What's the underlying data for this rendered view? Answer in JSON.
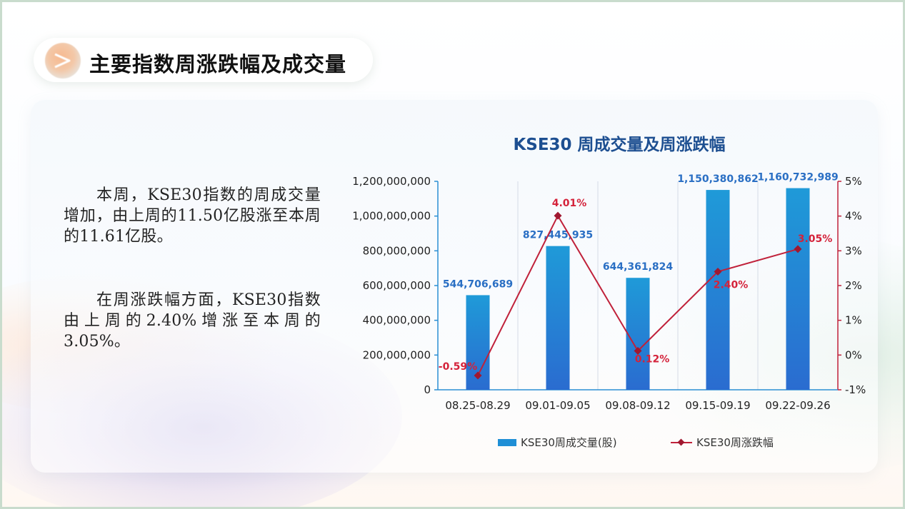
{
  "header": {
    "title": "主要指数周涨跌幅及成交量"
  },
  "text": {
    "paragraph1": "本周，KSE30指数的周成交量增加，由上周的11.50亿股涨至本周的11.61亿股。",
    "paragraph2": "在周涨跌幅方面，KSE30指数由上周的2.40%增涨至本周的3.05%。"
  },
  "colors": {
    "bar": "#1f8fd6",
    "line": "#c0213a",
    "bar_label": "#2a6fc4",
    "line_label": "#d4223a"
  },
  "chart_data": {
    "type": "bar+line",
    "title": "KSE30 周成交量及周涨跌幅",
    "categories": [
      "08.25-08.29",
      "09.01-09.05",
      "09.08-09.12",
      "09.15-09.19",
      "09.22-09.26"
    ],
    "series": [
      {
        "name": "KSE30周成交量(股)",
        "type": "bar",
        "axis": "left",
        "values": [
          544706689,
          827445935,
          644361824,
          1150380862,
          1160732989
        ],
        "labels": [
          "544,706,689",
          "827,445,935",
          "644,361,824",
          "1,150,380,862",
          "1,160,732,989"
        ]
      },
      {
        "name": "KSE30周涨跌幅",
        "type": "line",
        "axis": "right",
        "values": [
          -0.59,
          4.01,
          0.12,
          2.4,
          3.05
        ],
        "labels": [
          "-0.59%",
          "4.01%",
          "0.12%",
          "2.40%",
          "3.05%"
        ]
      }
    ],
    "y_left": {
      "min": 0,
      "max": 1200000000,
      "ticks": [
        "0",
        "200,000,000",
        "400,000,000",
        "600,000,000",
        "800,000,000",
        "1,000,000,000",
        "1,200,000,000"
      ]
    },
    "y_right": {
      "min": -1,
      "max": 5,
      "ticks": [
        "-1%",
        "0%",
        "1%",
        "2%",
        "3%",
        "4%",
        "5%"
      ]
    },
    "grid": "vertical",
    "legend": "bottom"
  }
}
